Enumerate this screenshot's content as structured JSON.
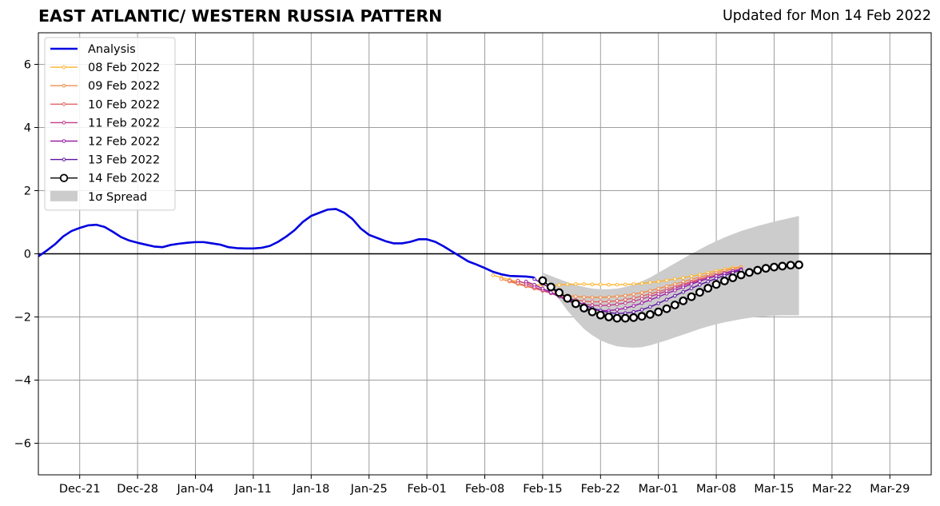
{
  "chart_data": {
    "type": "line",
    "title": "EAST ATLANTIC/ WESTERN RUSSIA PATTERN",
    "subtitle": "Updated for Mon 14 Feb 2022",
    "xlabel": "",
    "ylabel": "",
    "xlim": [
      "2021-12-16",
      "2022-04-03"
    ],
    "ylim": [
      -7,
      7
    ],
    "yticks": [
      -6,
      -4,
      -2,
      0,
      2,
      4,
      6
    ],
    "xticks": [
      {
        "date": "2021-12-21",
        "label": "Dec-21"
      },
      {
        "date": "2021-12-28",
        "label": "Dec-28"
      },
      {
        "date": "2022-01-04",
        "label": "Jan-04"
      },
      {
        "date": "2022-01-11",
        "label": "Jan-11"
      },
      {
        "date": "2022-01-18",
        "label": "Jan-18"
      },
      {
        "date": "2022-01-25",
        "label": "Jan-25"
      },
      {
        "date": "2022-02-01",
        "label": "Feb-01"
      },
      {
        "date": "2022-02-08",
        "label": "Feb-08"
      },
      {
        "date": "2022-02-15",
        "label": "Feb-15"
      },
      {
        "date": "2022-02-22",
        "label": "Feb-22"
      },
      {
        "date": "2022-03-01",
        "label": "Mar-01"
      },
      {
        "date": "2022-03-08",
        "label": "Mar-08"
      },
      {
        "date": "2022-03-15",
        "label": "Mar-15"
      },
      {
        "date": "2022-03-22",
        "label": "Mar-22"
      },
      {
        "date": "2022-03-29",
        "label": "Mar-29"
      }
    ],
    "grid": true,
    "legend_position": "top-left",
    "analysis": {
      "name": "Analysis",
      "color": "#0000e0",
      "start_date": "2021-12-16",
      "values": [
        -0.08,
        0.1,
        0.3,
        0.55,
        0.72,
        0.82,
        0.9,
        0.92,
        0.85,
        0.7,
        0.53,
        0.42,
        0.35,
        0.29,
        0.23,
        0.21,
        0.28,
        0.32,
        0.35,
        0.37,
        0.37,
        0.33,
        0.29,
        0.21,
        0.18,
        0.17,
        0.17,
        0.19,
        0.25,
        0.38,
        0.55,
        0.75,
        1.01,
        1.2,
        1.3,
        1.4,
        1.42,
        1.3,
        1.1,
        0.8,
        0.6,
        0.5,
        0.4,
        0.33,
        0.33,
        0.38,
        0.46,
        0.46,
        0.38,
        0.24,
        0.08,
        -0.08,
        -0.24,
        -0.34,
        -0.45,
        -0.57,
        -0.65,
        -0.7,
        -0.71,
        -0.72,
        -0.75
      ]
    },
    "series": [
      {
        "name": "08 Feb 2022",
        "color": "#fdb42f",
        "start_date": "2022-02-09",
        "values": [
          -0.68,
          -0.75,
          -0.82,
          -0.88,
          -0.93,
          -0.98,
          -1.0,
          -1.0,
          -0.99,
          -0.97,
          -0.96,
          -0.96,
          -0.97,
          -0.97,
          -0.98,
          -0.98,
          -0.97,
          -0.96,
          -0.94,
          -0.91,
          -0.88,
          -0.84,
          -0.8,
          -0.76,
          -0.71,
          -0.66,
          -0.6,
          -0.54,
          -0.49,
          -0.44,
          -0.42
        ]
      },
      {
        "name": "09 Feb 2022",
        "color": "#f28c4a",
        "start_date": "2022-02-10",
        "values": [
          -0.8,
          -0.88,
          -0.96,
          -1.03,
          -1.1,
          -1.17,
          -1.23,
          -1.28,
          -1.32,
          -1.35,
          -1.37,
          -1.38,
          -1.38,
          -1.37,
          -1.35,
          -1.32,
          -1.28,
          -1.23,
          -1.17,
          -1.1,
          -1.03,
          -0.96,
          -0.88,
          -0.81,
          -0.74,
          -0.67,
          -0.6,
          -0.54,
          -0.48,
          -0.43
        ]
      },
      {
        "name": "10 Feb 2022",
        "color": "#e16462",
        "start_date": "2022-02-11",
        "values": [
          -0.85,
          -0.93,
          -1.01,
          -1.09,
          -1.17,
          -1.25,
          -1.33,
          -1.4,
          -1.46,
          -1.5,
          -1.52,
          -1.52,
          -1.51,
          -1.49,
          -1.45,
          -1.4,
          -1.34,
          -1.27,
          -1.2,
          -1.12,
          -1.04,
          -0.96,
          -0.88,
          -0.8,
          -0.73,
          -0.66,
          -0.6,
          -0.54,
          -0.48
        ]
      },
      {
        "name": "11 Feb 2022",
        "color": "#c13e89",
        "start_date": "2022-02-12",
        "values": [
          -0.85,
          -0.95,
          -1.05,
          -1.15,
          -1.25,
          -1.35,
          -1.45,
          -1.54,
          -1.6,
          -1.63,
          -1.64,
          -1.63,
          -1.6,
          -1.56,
          -1.5,
          -1.43,
          -1.35,
          -1.27,
          -1.18,
          -1.09,
          -1.0,
          -0.92,
          -0.84,
          -0.77,
          -0.7,
          -0.63,
          -0.57,
          -0.51
        ]
      },
      {
        "name": "12 Feb 2022",
        "color": "#9a20a6",
        "start_date": "2022-02-13",
        "values": [
          -0.88,
          -0.98,
          -1.1,
          -1.22,
          -1.35,
          -1.48,
          -1.6,
          -1.7,
          -1.77,
          -1.8,
          -1.8,
          -1.77,
          -1.72,
          -1.65,
          -1.56,
          -1.46,
          -1.36,
          -1.26,
          -1.16,
          -1.06,
          -0.96,
          -0.87,
          -0.78,
          -0.7,
          -0.62,
          -0.55,
          -0.49
        ]
      },
      {
        "name": "13 Feb 2022",
        "color": "#5c14a0",
        "start_date": "2022-02-14",
        "values": [
          -0.8,
          -0.95,
          -1.1,
          -1.25,
          -1.38,
          -1.5,
          -1.62,
          -1.72,
          -1.8,
          -1.86,
          -1.89,
          -1.88,
          -1.84,
          -1.77,
          -1.68,
          -1.57,
          -1.45,
          -1.33,
          -1.21,
          -1.09,
          -0.98,
          -0.88,
          -0.78,
          -0.69,
          -0.6,
          -0.52
        ]
      },
      {
        "name": "14 Feb 2022",
        "color": "#000000",
        "start_date": "2022-02-15",
        "values": [
          -0.85,
          -1.05,
          -1.23,
          -1.41,
          -1.58,
          -1.72,
          -1.84,
          -1.94,
          -2.0,
          -2.04,
          -2.04,
          -2.02,
          -1.98,
          -1.92,
          -1.84,
          -1.74,
          -1.62,
          -1.49,
          -1.36,
          -1.22,
          -1.09,
          -0.97,
          -0.86,
          -0.76,
          -0.67,
          -0.59,
          -0.52,
          -0.46,
          -0.42,
          -0.39,
          -0.36,
          -0.35
        ]
      }
    ],
    "spread": {
      "name": "1σ Spread",
      "color": "#cccccc",
      "start_date": "2022-02-15",
      "upper": [
        -0.6,
        -0.7,
        -0.8,
        -0.9,
        -0.98,
        -1.05,
        -1.1,
        -1.12,
        -1.12,
        -1.1,
        -1.05,
        -0.97,
        -0.87,
        -0.75,
        -0.6,
        -0.45,
        -0.3,
        -0.15,
        0.0,
        0.14,
        0.28,
        0.4,
        0.52,
        0.62,
        0.72,
        0.8,
        0.88,
        0.95,
        1.02,
        1.08,
        1.14,
        1.2
      ],
      "lower": [
        -0.6,
        -1.05,
        -1.45,
        -1.8,
        -2.1,
        -2.38,
        -2.58,
        -2.74,
        -2.85,
        -2.93,
        -2.96,
        -2.97,
        -2.96,
        -2.9,
        -2.82,
        -2.74,
        -2.65,
        -2.56,
        -2.47,
        -2.38,
        -2.3,
        -2.23,
        -2.17,
        -2.12,
        -2.07,
        -2.03,
        -2.0,
        -1.98,
        -1.96,
        -1.95,
        -1.95,
        -1.95
      ]
    }
  }
}
